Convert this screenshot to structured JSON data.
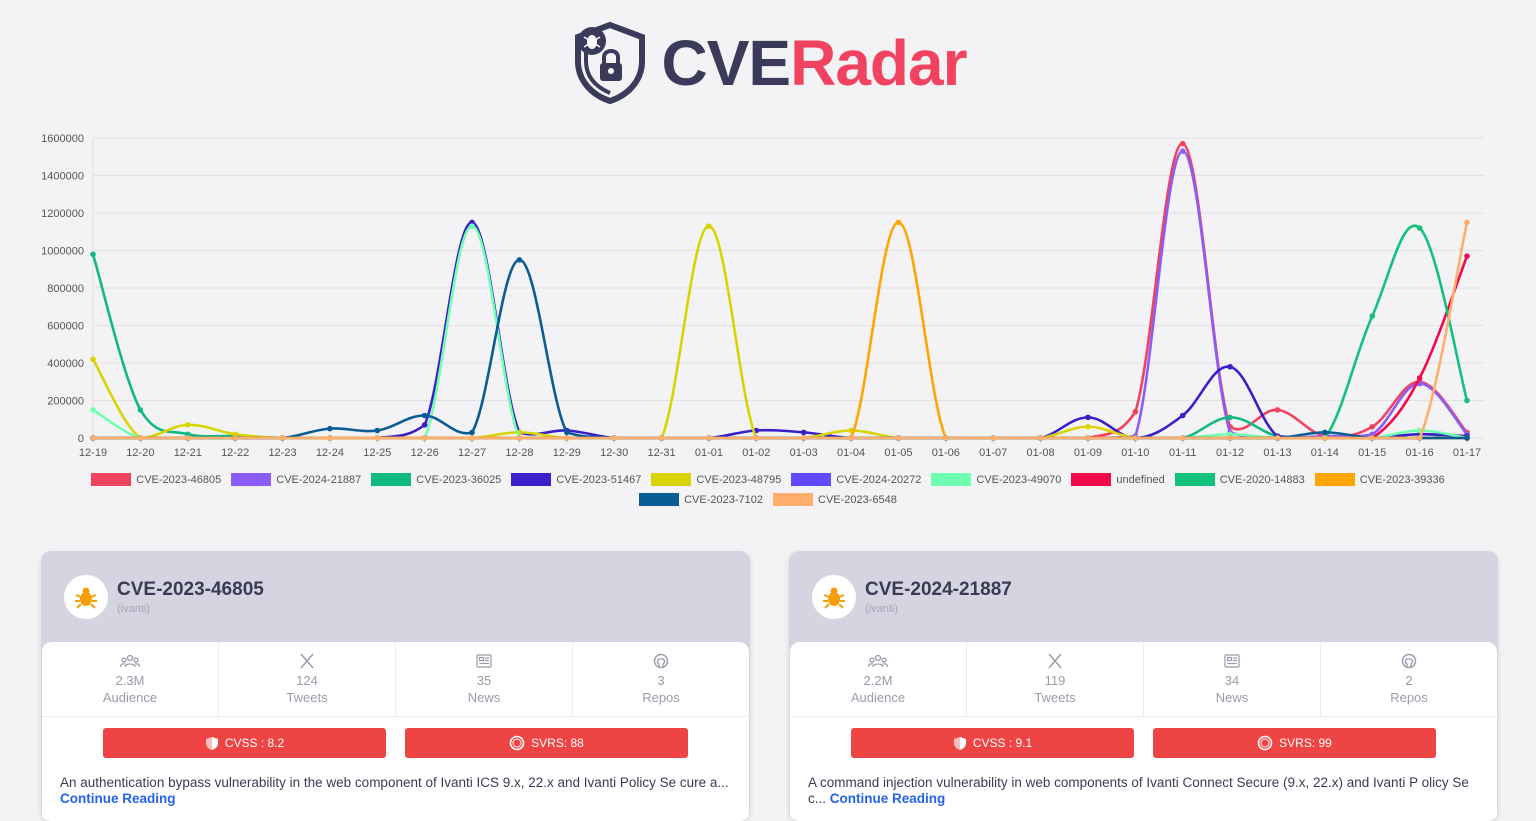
{
  "app": {
    "title_part1": "CVE",
    "title_part2": "Radar"
  },
  "colors": {
    "brand_dark": "#3b3a5a",
    "brand_accent": "#f1435f",
    "score_red": "#ef4444",
    "link": "#2563eb"
  },
  "chart_data": {
    "type": "line",
    "categories": [
      "12-19",
      "12-20",
      "12-21",
      "12-22",
      "12-23",
      "12-24",
      "12-25",
      "12-26",
      "12-27",
      "12-28",
      "12-29",
      "12-30",
      "12-31",
      "01-01",
      "01-02",
      "01-03",
      "01-04",
      "01-05",
      "01-06",
      "01-07",
      "01-08",
      "01-09",
      "01-10",
      "01-11",
      "01-12",
      "01-13",
      "01-14",
      "01-15",
      "01-16",
      "01-17"
    ],
    "ylim": [
      0,
      1600000
    ],
    "yticks": [
      0,
      200000,
      400000,
      600000,
      800000,
      1000000,
      1200000,
      1400000,
      1600000
    ],
    "grid": true,
    "legend_position": "bottom",
    "series": [
      {
        "name": "CVE-2023-46805",
        "color": "#f1435f",
        "values": [
          0,
          0,
          0,
          0,
          0,
          0,
          0,
          0,
          0,
          0,
          0,
          0,
          0,
          0,
          0,
          0,
          0,
          0,
          0,
          0,
          0,
          0,
          140000,
          1570000,
          60000,
          150000,
          10000,
          60000,
          300000,
          30000
        ]
      },
      {
        "name": "CVE-2024-21887",
        "color": "#8b5cf6",
        "values": [
          0,
          0,
          0,
          0,
          0,
          0,
          0,
          0,
          0,
          0,
          0,
          0,
          0,
          0,
          0,
          0,
          0,
          0,
          0,
          0,
          0,
          0,
          10000,
          1530000,
          30000,
          0,
          10000,
          20000,
          290000,
          20000
        ]
      },
      {
        "name": "CVE-2023-36025",
        "color": "#10b981",
        "values": [
          980000,
          150000,
          20000,
          10000,
          0,
          0,
          0,
          0,
          0,
          0,
          0,
          0,
          0,
          0,
          0,
          0,
          0,
          0,
          0,
          0,
          0,
          0,
          0,
          0,
          110000,
          10000,
          0,
          0,
          20000,
          0
        ]
      },
      {
        "name": "CVE-2023-51467",
        "color": "#3b1fc9",
        "values": [
          0,
          0,
          0,
          0,
          0,
          0,
          0,
          70000,
          1150000,
          30000,
          40000,
          0,
          0,
          0,
          40000,
          30000,
          0,
          0,
          0,
          0,
          0,
          110000,
          0,
          120000,
          380000,
          10000,
          0,
          0,
          20000,
          10000
        ]
      },
      {
        "name": "CVE-2023-48795",
        "color": "#d9d400",
        "values": [
          420000,
          0,
          70000,
          20000,
          0,
          0,
          0,
          0,
          0,
          30000,
          0,
          0,
          0,
          1130000,
          0,
          0,
          40000,
          0,
          0,
          0,
          0,
          60000,
          0,
          0,
          0,
          0,
          0,
          0,
          0,
          0
        ]
      },
      {
        "name": "CVE-2024-20272",
        "color": "#6049ff",
        "values": [
          0,
          0,
          0,
          0,
          0,
          0,
          0,
          0,
          0,
          0,
          0,
          0,
          0,
          0,
          0,
          0,
          0,
          0,
          0,
          0,
          0,
          0,
          0,
          0,
          0,
          0,
          0,
          0,
          0,
          0
        ]
      },
      {
        "name": "CVE-2023-49070",
        "color": "#6fffb0",
        "values": [
          150000,
          0,
          0,
          0,
          0,
          0,
          0,
          0,
          1130000,
          0,
          0,
          0,
          0,
          0,
          0,
          0,
          0,
          0,
          0,
          0,
          0,
          0,
          0,
          0,
          20000,
          0,
          0,
          0,
          40000,
          0
        ]
      },
      {
        "name": "undefined",
        "color": "#f4094b",
        "values": [
          0,
          0,
          0,
          0,
          0,
          0,
          0,
          0,
          0,
          0,
          0,
          0,
          0,
          0,
          0,
          0,
          0,
          0,
          0,
          0,
          0,
          0,
          0,
          0,
          0,
          0,
          0,
          0,
          320000,
          970000
        ]
      },
      {
        "name": "CVE-2020-14883",
        "color": "#12c27a",
        "values": [
          0,
          0,
          0,
          0,
          0,
          0,
          0,
          0,
          0,
          0,
          0,
          0,
          0,
          0,
          0,
          0,
          0,
          0,
          0,
          0,
          0,
          0,
          0,
          0,
          0,
          0,
          0,
          650000,
          1120000,
          200000
        ]
      },
      {
        "name": "CVE-2023-39336",
        "color": "#ffa502",
        "values": [
          0,
          0,
          0,
          0,
          0,
          0,
          0,
          0,
          0,
          0,
          0,
          0,
          0,
          0,
          0,
          0,
          0,
          1150000,
          0,
          0,
          0,
          0,
          0,
          0,
          0,
          0,
          0,
          0,
          0,
          0
        ]
      },
      {
        "name": "CVE-2023-7102",
        "color": "#0a5c94",
        "values": [
          0,
          0,
          0,
          0,
          0,
          50000,
          40000,
          120000,
          30000,
          950000,
          30000,
          0,
          0,
          0,
          0,
          0,
          0,
          0,
          0,
          0,
          0,
          0,
          0,
          0,
          0,
          0,
          30000,
          0,
          0,
          0
        ]
      },
      {
        "name": "CVE-2023-6548",
        "color": "#ffae6b",
        "values": [
          0,
          0,
          0,
          0,
          0,
          0,
          0,
          0,
          0,
          0,
          0,
          0,
          0,
          0,
          0,
          0,
          0,
          0,
          0,
          0,
          0,
          0,
          0,
          0,
          0,
          0,
          0,
          0,
          0,
          1150000
        ]
      }
    ]
  },
  "cards": [
    {
      "title": "CVE-2023-46805",
      "vendor": "(ivanti)",
      "stats": [
        {
          "value": "2.3M",
          "label": "Audience",
          "icon": "audience-icon"
        },
        {
          "value": "124",
          "label": "Tweets",
          "icon": "x-icon"
        },
        {
          "value": "35",
          "label": "News",
          "icon": "news-icon"
        },
        {
          "value": "3",
          "label": "Repos",
          "icon": "github-icon"
        }
      ],
      "cvss": "CVSS : 8.2",
      "svrs": "SVRS: 88",
      "description": "An authentication bypass vulnerability in the web component of Ivanti ICS 9.x, 22.x and Ivanti Policy Se cure a...",
      "link_text": "Continue Reading"
    },
    {
      "title": "CVE-2024-21887",
      "vendor": "(ivanti)",
      "stats": [
        {
          "value": "2.2M",
          "label": "Audience",
          "icon": "audience-icon"
        },
        {
          "value": "119",
          "label": "Tweets",
          "icon": "x-icon"
        },
        {
          "value": "34",
          "label": "News",
          "icon": "news-icon"
        },
        {
          "value": "2",
          "label": "Repos",
          "icon": "github-icon"
        }
      ],
      "cvss": "CVSS : 9.1",
      "svrs": "SVRS: 99",
      "description": "A command injection vulnerability in web components of Ivanti Connect Secure (9.x, 22.x) and Ivanti P olicy Sec...",
      "link_text": "Continue Reading"
    }
  ]
}
